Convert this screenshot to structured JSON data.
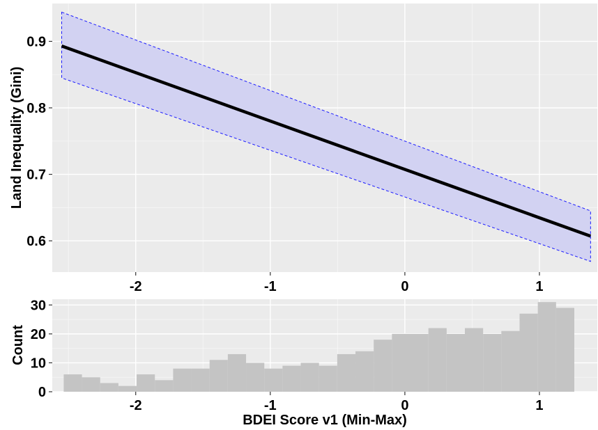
{
  "chart_data": [
    {
      "type": "line",
      "title": "",
      "xlabel": "",
      "ylabel": "Land Inequality (Gini)",
      "xlim": [
        -2.62,
        1.43
      ],
      "ylim": [
        0.553,
        0.957
      ],
      "x_ticks": [
        -2,
        -1,
        0,
        1
      ],
      "y_ticks": [
        0.6,
        0.7,
        0.8,
        0.9
      ],
      "x_tick_labels": [
        "-2",
        "-1",
        "0",
        "1"
      ],
      "y_tick_labels": [
        "0.6",
        "0.7",
        "0.8",
        "0.9"
      ],
      "grid": true,
      "legend": "none",
      "series": [
        {
          "x": [
            -2.55,
            1.38
          ],
          "y": [
            0.893,
            0.607
          ]
        }
      ],
      "band": {
        "x": [
          -2.55,
          1.38
        ],
        "upper": [
          0.944,
          0.645
        ],
        "lower": [
          0.845,
          0.569
        ]
      },
      "colors": {
        "line": "#000000",
        "band_fill": "#d2d2f2",
        "band_edge": "#1a1aff",
        "panel": "#ebebeb",
        "grid": "#ffffff"
      }
    },
    {
      "type": "bar",
      "subtype": "histogram",
      "title": "",
      "xlabel": "BDEI Score v1 (Min-Max)",
      "ylabel": "Count",
      "xlim": [
        -2.62,
        1.43
      ],
      "ylim": [
        0,
        32
      ],
      "x_ticks": [
        -2,
        -1,
        0,
        1
      ],
      "y_ticks": [
        0,
        10,
        20,
        30
      ],
      "x_tick_labels": [
        "-2",
        "-1",
        "0",
        "1"
      ],
      "y_tick_labels": [
        "0",
        "10",
        "20",
        "30"
      ],
      "grid": true,
      "legend": "none",
      "bin_start": -2.535,
      "bin_width": 0.1355,
      "values": [
        6,
        5,
        3,
        2,
        6,
        4,
        8,
        8,
        11,
        13,
        10,
        8,
        9,
        10,
        9,
        13,
        14,
        18,
        20,
        20,
        22,
        20,
        22,
        20,
        21,
        27,
        31,
        29
      ],
      "colors": {
        "bar": "#c4c4c4",
        "panel": "#ebebeb",
        "grid": "#ffffff"
      }
    }
  ]
}
